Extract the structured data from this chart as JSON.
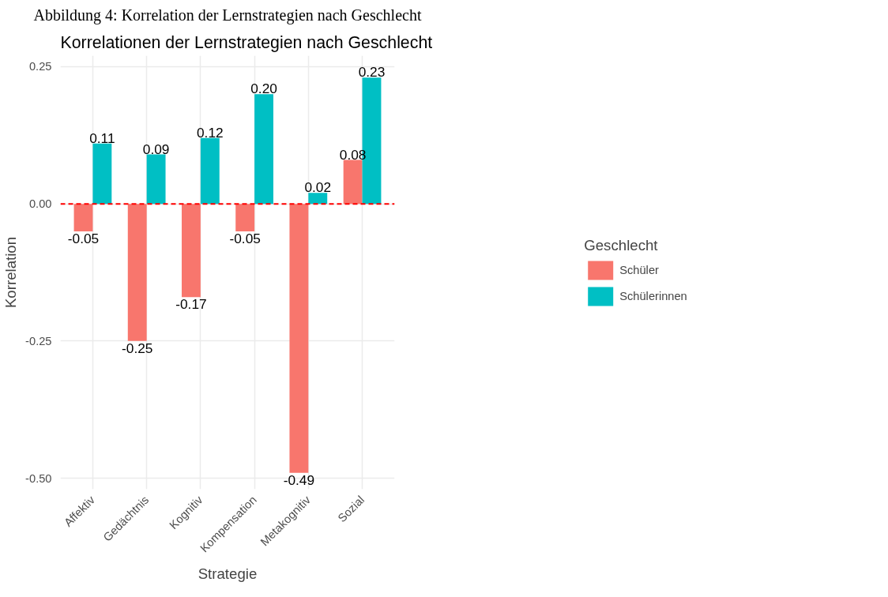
{
  "chart_data": {
    "type": "bar",
    "title": "Abbildung 4: Korrelation der Lernstrategien nach Geschlecht",
    "subtitle": "Korrelationen der Lernstrategien nach Geschlecht",
    "xlabel": "Strategie",
    "ylabel": "Korrelation",
    "legend_title": "Geschlecht",
    "categories": [
      "Affektiv",
      "Gedächtnis",
      "Kognitiv",
      "Kompensation",
      "Metakognitiv",
      "Sozial"
    ],
    "series": [
      {
        "name": "Schüler",
        "color": "#f8766d",
        "values": [
          -0.05,
          -0.25,
          -0.17,
          -0.05,
          -0.49,
          0.08
        ],
        "value_labels": [
          "-0.05",
          "-0.25",
          "-0.17",
          "-0.05",
          "-0.49",
          "0.08"
        ]
      },
      {
        "name": "Schülerinnen",
        "color": "#00bfc4",
        "values": [
          0.11,
          0.09,
          0.12,
          0.2,
          0.02,
          0.23
        ],
        "value_labels": [
          "0.11",
          "0.09",
          "0.12",
          "0.20",
          "0.02",
          "0.23"
        ]
      }
    ],
    "ylim": [
      -0.52,
      0.27
    ],
    "yticks": [
      {
        "value": -0.5,
        "label": "-0.50"
      },
      {
        "value": -0.25,
        "label": "-0.25"
      },
      {
        "value": 0,
        "label": "0.00"
      },
      {
        "value": 0.25,
        "label": "0.25"
      }
    ],
    "ref_lines": [
      {
        "axis": "y",
        "value": 0,
        "color": "#ff0000",
        "line_style": "dashed"
      }
    ],
    "grid": true,
    "legend": "right"
  }
}
